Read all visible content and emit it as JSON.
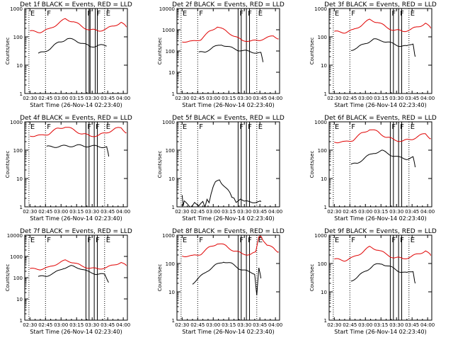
{
  "common": {
    "x_tick_labels": [
      "02:30",
      "02:45",
      "03:00",
      "03:15",
      "03:30",
      "03:45",
      "04:00"
    ],
    "x_tick_minutes": [
      150,
      165,
      180,
      195,
      210,
      225,
      240
    ],
    "xlim_minutes": [
      145,
      244
    ],
    "xlabel": "Start Time (26-Nov-14 02:23:40)",
    "ylabel": "Counts/sec",
    "y_scale": "log",
    "colors": {
      "events": "#000000",
      "lld": "#e00000",
      "markers": "#000000"
    },
    "marker_note": "vertical marker lines labelled E (eclipse) / F (flare-type) at the top of each panel"
  },
  "chart_data": [
    {
      "type": "line",
      "title": "Det 1f BLACK = Events, RED = LLD",
      "ylim": [
        1,
        1000
      ],
      "y_tick_labels": [
        "1",
        "10",
        "100",
        "1000"
      ],
      "markers": [
        {
          "minute": 149,
          "style": "dotted",
          "label": "E"
        },
        {
          "minute": 165,
          "style": "dotted",
          "label": "F"
        },
        {
          "minute": 204,
          "style": "solid",
          "label": "F"
        },
        {
          "minute": 207,
          "style": "solid",
          "label": ""
        },
        {
          "minute": 208,
          "style": "solid",
          "label": ""
        },
        {
          "minute": 213,
          "style": "solid",
          "label": "F"
        },
        {
          "minute": 215,
          "style": "solid",
          "label": ""
        },
        {
          "minute": 222,
          "style": "dotted",
          "label": "E"
        }
      ],
      "series": [
        {
          "name": "LLD",
          "color": "#e00000",
          "x": [
            150,
            160,
            168,
            176,
            184,
            192,
            200,
            208,
            216,
            224,
            232,
            238,
            243
          ],
          "y": [
            155,
            150,
            180,
            280,
            420,
            350,
            230,
            175,
            165,
            190,
            260,
            320,
            220
          ]
        },
        {
          "name": "Events",
          "color": "#000000",
          "x": [
            158,
            164,
            170,
            178,
            186,
            194,
            200,
            208,
            216,
            224
          ],
          "y": [
            25,
            30,
            40,
            65,
            85,
            75,
            60,
            45,
            50,
            48
          ]
        }
      ]
    },
    {
      "type": "line",
      "title": "Det 2f BLACK = Events, RED = LLD",
      "ylim": [
        1,
        10000
      ],
      "y_tick_labels": [
        "1",
        "10",
        "100",
        "1000",
        "10000"
      ],
      "markers": [
        {
          "minute": 149,
          "style": "dotted",
          "label": "E"
        },
        {
          "minute": 165,
          "style": "dotted",
          "label": "F"
        },
        {
          "minute": 204,
          "style": "solid",
          "label": "F"
        },
        {
          "minute": 207,
          "style": "solid",
          "label": ""
        },
        {
          "minute": 212,
          "style": "solid",
          "label": "F"
        },
        {
          "minute": 215,
          "style": "solid",
          "label": ""
        },
        {
          "minute": 222,
          "style": "dotted",
          "label": "E"
        }
      ],
      "series": [
        {
          "name": "LLD",
          "color": "#e00000",
          "x": [
            150,
            160,
            168,
            176,
            184,
            192,
            200,
            208,
            216,
            224,
            232,
            238,
            243
          ],
          "y": [
            280,
            280,
            350,
            800,
            1400,
            900,
            500,
            320,
            290,
            320,
            420,
            520,
            380
          ]
        },
        {
          "name": "Events",
          "color": "#000000",
          "x": [
            166,
            172,
            180,
            188,
            196,
            204,
            212,
            220,
            226,
            228
          ],
          "y": [
            85,
            90,
            150,
            200,
            150,
            110,
            100,
            85,
            80,
            30
          ]
        }
      ]
    },
    {
      "type": "line",
      "title": "Det 3f BLACK = Events, RED = LLD",
      "ylim": [
        1,
        1000
      ],
      "y_tick_labels": [
        "1",
        "10",
        "100",
        "1000"
      ],
      "markers": [
        {
          "minute": 149,
          "style": "dotted",
          "label": "E"
        },
        {
          "minute": 165,
          "style": "dotted",
          "label": "F"
        },
        {
          "minute": 204,
          "style": "solid",
          "label": "F"
        },
        {
          "minute": 207,
          "style": "solid",
          "label": ""
        },
        {
          "minute": 212,
          "style": "solid",
          "label": "F"
        },
        {
          "minute": 215,
          "style": "solid",
          "label": ""
        },
        {
          "minute": 222,
          "style": "dotted",
          "label": "E"
        }
      ],
      "series": [
        {
          "name": "LLD",
          "color": "#e00000",
          "x": [
            150,
            160,
            168,
            176,
            184,
            192,
            200,
            208,
            216,
            224,
            232,
            238,
            243
          ],
          "y": [
            150,
            145,
            170,
            260,
            400,
            330,
            220,
            170,
            160,
            180,
            240,
            300,
            200
          ]
        },
        {
          "name": "Events",
          "color": "#000000",
          "x": [
            166,
            172,
            180,
            188,
            196,
            204,
            212,
            220,
            226,
            228
          ],
          "y": [
            35,
            40,
            60,
            80,
            75,
            60,
            50,
            45,
            60,
            20
          ]
        }
      ]
    },
    {
      "type": "line",
      "title": "Det 4f BLACK = Events, RED = LLD",
      "ylim": [
        1,
        1000
      ],
      "y_tick_labels": [
        "1",
        "10",
        "100",
        "1000"
      ],
      "markers": [
        {
          "minute": 149,
          "style": "dotted",
          "label": "E"
        },
        {
          "minute": 165,
          "style": "dotted",
          "label": "F"
        },
        {
          "minute": 204,
          "style": "solid",
          "label": "F"
        },
        {
          "minute": 207,
          "style": "solid",
          "label": ""
        },
        {
          "minute": 212,
          "style": "solid",
          "label": "F"
        },
        {
          "minute": 215,
          "style": "solid",
          "label": ""
        },
        {
          "minute": 222,
          "style": "dotted",
          "label": "E"
        }
      ],
      "series": [
        {
          "name": "LLD",
          "color": "#e00000",
          "x": [
            150,
            160,
            168,
            176,
            184,
            192,
            200,
            208,
            216,
            224,
            232,
            238,
            243
          ],
          "y": [
            330,
            320,
            380,
            560,
            680,
            520,
            380,
            320,
            330,
            420,
            560,
            620,
            420
          ]
        },
        {
          "name": "Events",
          "color": "#000000",
          "x": [
            166,
            176,
            186,
            196,
            206,
            216,
            224,
            226
          ],
          "y": [
            130,
            135,
            140,
            145,
            140,
            135,
            130,
            60
          ]
        }
      ]
    },
    {
      "type": "line",
      "title": "Det 5f BLACK = Events, RED = LLD",
      "ylim": [
        1,
        1000
      ],
      "y_tick_labels": [
        "1",
        "10",
        "100",
        "1000"
      ],
      "markers": [
        {
          "minute": 149,
          "style": "dotted",
          "label": "E"
        },
        {
          "minute": 165,
          "style": "dotted",
          "label": "F"
        },
        {
          "minute": 204,
          "style": "solid",
          "label": "F"
        },
        {
          "minute": 207,
          "style": "solid",
          "label": ""
        },
        {
          "minute": 212,
          "style": "solid",
          "label": "F"
        },
        {
          "minute": 215,
          "style": "solid",
          "label": ""
        },
        {
          "minute": 222,
          "style": "dotted",
          "label": "E"
        }
      ],
      "series": [
        {
          "name": "Events",
          "color": "#000000",
          "x": [
            150,
            151,
            152,
            158,
            162,
            166,
            170,
            172,
            174,
            176,
            178,
            180,
            182,
            184,
            186,
            188,
            190,
            192,
            194,
            196,
            198,
            200,
            202,
            206,
            210,
            214,
            218,
            222,
            226
          ],
          "y": [
            2.5,
            1,
            1.5,
            1,
            1.5,
            1,
            1.5,
            1,
            2,
            1.5,
            3,
            5,
            7,
            8,
            9,
            7,
            6,
            5,
            4,
            3,
            2,
            2,
            1.5,
            2,
            1.5,
            1.5,
            1.5,
            1.5,
            1.5
          ]
        }
      ]
    },
    {
      "type": "line",
      "title": "Det 6f BLACK = Events, RED = LLD",
      "ylim": [
        1,
        1000
      ],
      "y_tick_labels": [
        "1",
        "10",
        "100",
        "1000"
      ],
      "markers": [
        {
          "minute": 149,
          "style": "dotted",
          "label": "E"
        },
        {
          "minute": 165,
          "style": "dotted",
          "label": "F"
        },
        {
          "minute": 204,
          "style": "solid",
          "label": "F"
        },
        {
          "minute": 207,
          "style": "solid",
          "label": ""
        },
        {
          "minute": 212,
          "style": "solid",
          "label": "F"
        },
        {
          "minute": 215,
          "style": "solid",
          "label": ""
        },
        {
          "minute": 222,
          "style": "dotted",
          "label": "E"
        }
      ],
      "series": [
        {
          "name": "LLD",
          "color": "#e00000",
          "x": [
            150,
            160,
            168,
            176,
            184,
            192,
            200,
            208,
            216,
            224,
            232,
            238,
            243
          ],
          "y": [
            200,
            190,
            230,
            380,
            550,
            440,
            290,
            230,
            210,
            240,
            320,
            380,
            260
          ]
        },
        {
          "name": "Events",
          "color": "#000000",
          "x": [
            166,
            172,
            180,
            188,
            196,
            204,
            212,
            220,
            226,
            228
          ],
          "y": [
            30,
            35,
            55,
            80,
            95,
            70,
            55,
            50,
            55,
            25
          ]
        }
      ]
    },
    {
      "type": "line",
      "title": "Det 7f BLACK = Events, RED = LLD",
      "ylim": [
        1,
        10000
      ],
      "y_tick_labels": [
        "1",
        "10",
        "100",
        "1000",
        "10000"
      ],
      "markers": [
        {
          "minute": 149,
          "style": "dotted",
          "label": "E"
        },
        {
          "minute": 165,
          "style": "dotted",
          "label": "F"
        },
        {
          "minute": 204,
          "style": "solid",
          "label": "F"
        },
        {
          "minute": 207,
          "style": "solid",
          "label": ""
        },
        {
          "minute": 212,
          "style": "solid",
          "label": "F"
        },
        {
          "minute": 215,
          "style": "solid",
          "label": ""
        },
        {
          "minute": 222,
          "style": "dotted",
          "label": "E"
        }
      ],
      "series": [
        {
          "name": "LLD",
          "color": "#e00000",
          "x": [
            150,
            160,
            168,
            176,
            184,
            192,
            200,
            208,
            216,
            224,
            232,
            238,
            243
          ],
          "y": [
            260,
            250,
            300,
            450,
            650,
            520,
            350,
            280,
            260,
            300,
            420,
            520,
            360
          ]
        },
        {
          "name": "Events",
          "color": "#000000",
          "x": [
            158,
            166,
            174,
            182,
            190,
            198,
            206,
            214,
            222,
            226
          ],
          "y": [
            110,
            120,
            170,
            280,
            350,
            280,
            190,
            150,
            140,
            60
          ]
        }
      ]
    },
    {
      "type": "line",
      "title": "Det 8f BLACK = Events, RED = LLD",
      "ylim": [
        1,
        1000
      ],
      "y_tick_labels": [
        "1",
        "10",
        "100",
        "1000"
      ],
      "markers": [
        {
          "minute": 149,
          "style": "dotted",
          "label": "E"
        },
        {
          "minute": 165,
          "style": "dotted",
          "label": "F"
        },
        {
          "minute": 204,
          "style": "solid",
          "label": "F"
        },
        {
          "minute": 207,
          "style": "solid",
          "label": ""
        },
        {
          "minute": 212,
          "style": "solid",
          "label": "F"
        },
        {
          "minute": 215,
          "style": "solid",
          "label": ""
        },
        {
          "minute": 222,
          "style": "dotted",
          "label": "E"
        }
      ],
      "series": [
        {
          "name": "LLD",
          "color": "#e00000",
          "x": [
            150,
            160,
            168,
            176,
            184,
            192,
            200,
            208,
            216,
            221,
            224,
            226,
            228,
            232,
            238,
            243
          ],
          "y": [
            190,
            180,
            220,
            360,
            520,
            420,
            280,
            220,
            210,
            240,
            900,
            1000,
            700,
            420,
            360,
            260
          ]
        },
        {
          "name": "Events",
          "color": "#000000",
          "x": [
            160,
            166,
            174,
            182,
            190,
            198,
            206,
            214,
            220,
            222,
            224,
            226
          ],
          "y": [
            20,
            30,
            55,
            85,
            120,
            95,
            65,
            50,
            45,
            8,
            70,
            30
          ]
        }
      ]
    },
    {
      "type": "line",
      "title": "Det 9f BLACK = Events, RED = LLD",
      "ylim": [
        1,
        1000
      ],
      "y_tick_labels": [
        "1",
        "10",
        "100",
        "1000"
      ],
      "markers": [
        {
          "minute": 149,
          "style": "dotted",
          "label": "E"
        },
        {
          "minute": 165,
          "style": "dotted",
          "label": "F"
        },
        {
          "minute": 204,
          "style": "solid",
          "label": "F"
        },
        {
          "minute": 207,
          "style": "solid",
          "label": ""
        },
        {
          "minute": 212,
          "style": "solid",
          "label": "F"
        },
        {
          "minute": 215,
          "style": "solid",
          "label": ""
        },
        {
          "minute": 222,
          "style": "dotted",
          "label": "E"
        }
      ],
      "series": [
        {
          "name": "LLD",
          "color": "#e00000",
          "x": [
            150,
            160,
            168,
            176,
            184,
            192,
            200,
            208,
            216,
            224,
            232,
            238,
            243
          ],
          "y": [
            140,
            130,
            160,
            240,
            380,
            310,
            210,
            160,
            150,
            170,
            230,
            280,
            190
          ]
        },
        {
          "name": "Events",
          "color": "#000000",
          "x": [
            166,
            172,
            180,
            188,
            196,
            204,
            212,
            220,
            226,
            228
          ],
          "y": [
            25,
            32,
            55,
            85,
            100,
            75,
            55,
            45,
            55,
            20
          ]
        }
      ]
    }
  ]
}
